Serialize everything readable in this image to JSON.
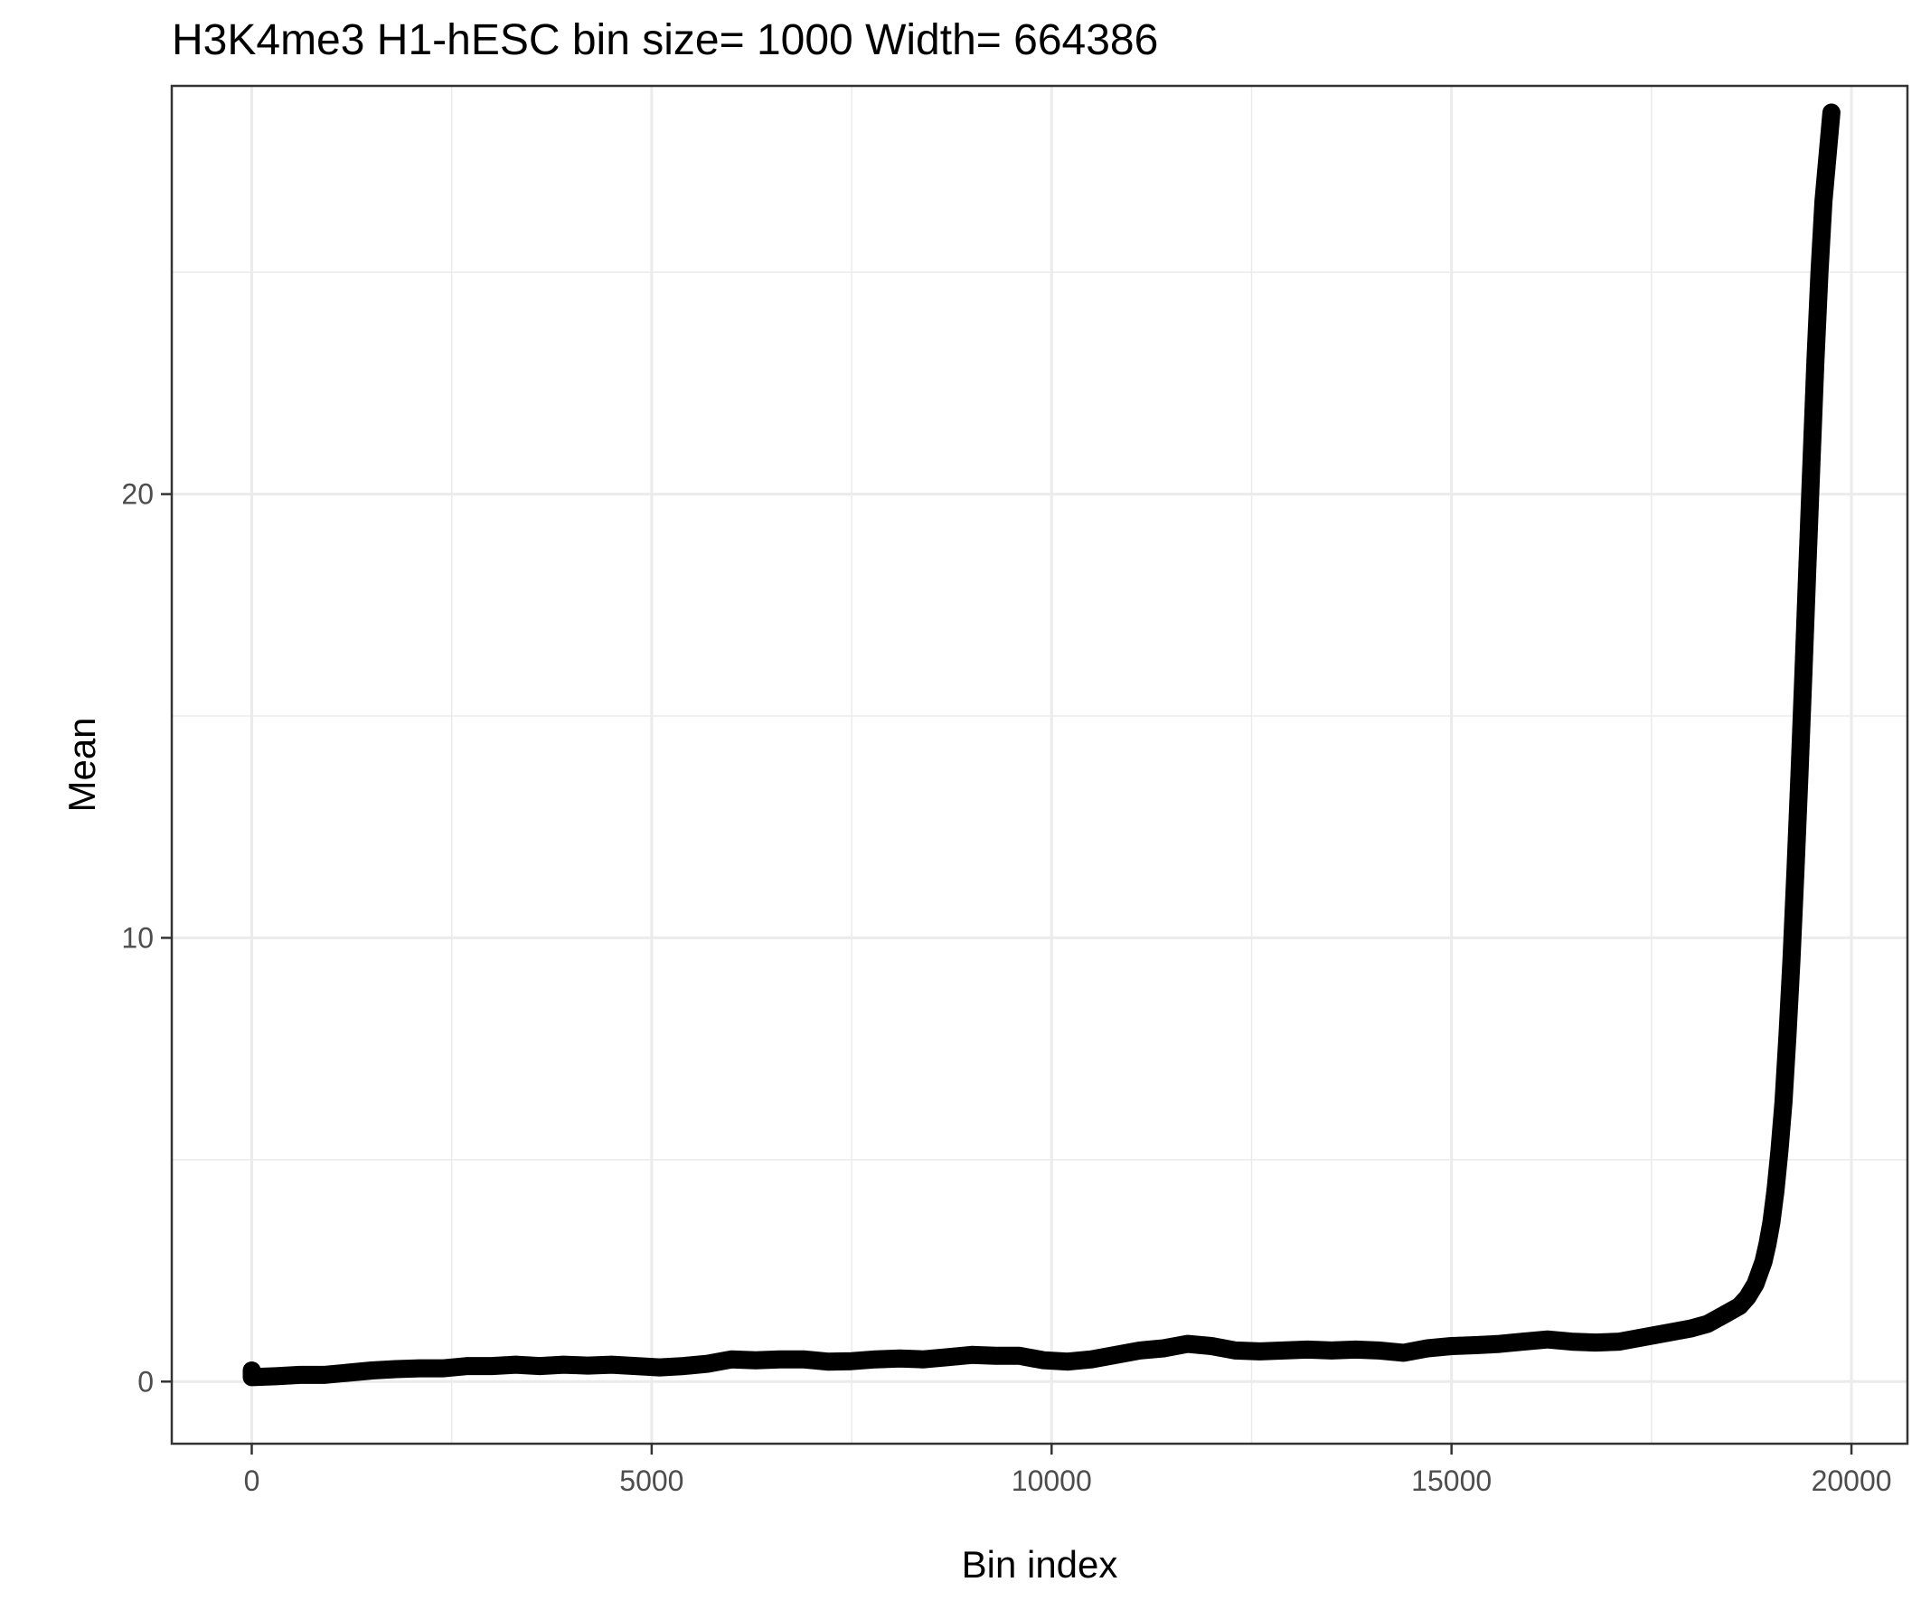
{
  "chart_data": {
    "type": "line",
    "title": "H3K4me3 H1-hESC  bin size=  1000  Width=  664386",
    "xlabel": "Bin index",
    "ylabel": "Mean",
    "xlim": [
      -1000,
      20700
    ],
    "ylim": [
      -1.4,
      29.2
    ],
    "x_ticks": [
      0,
      5000,
      10000,
      15000,
      20000
    ],
    "x_tick_labels": [
      "0",
      "5000",
      "10000",
      "15000",
      "20000"
    ],
    "x_minor_ticks": [
      2500,
      7500,
      12500,
      17500
    ],
    "y_ticks": [
      0,
      10,
      20
    ],
    "y_tick_labels": [
      "0",
      "10",
      "20"
    ],
    "y_minor_ticks": [
      5,
      15,
      25
    ],
    "grid": true,
    "legend": "none",
    "line_color": "#000000",
    "series": [
      {
        "x": [
          0,
          0,
          300,
          600,
          900,
          1200,
          1500,
          1800,
          2100,
          2400,
          2700,
          3000,
          3300,
          3600,
          3900,
          4200,
          4500,
          4800,
          5100,
          5400,
          5700,
          6000,
          6300,
          6600,
          6900,
          7200,
          7500,
          7800,
          8100,
          8400,
          8700,
          9000,
          9300,
          9600,
          9900,
          10200,
          10500,
          10800,
          11100,
          11400,
          11700,
          12000,
          12300,
          12600,
          12900,
          13200,
          13500,
          13800,
          14100,
          14400,
          14700,
          15000,
          15300,
          15600,
          15900,
          16200,
          16500,
          16800,
          17100,
          17400,
          17700,
          18000,
          18200,
          18400,
          18600,
          18700,
          18800,
          18900,
          18950,
          19000,
          19050,
          19100,
          19150,
          19200,
          19250,
          19300,
          19350,
          19400,
          19450,
          19500,
          19550,
          19600,
          19650,
          19700,
          19750
        ],
        "values": [
          0.25,
          0.1,
          0.12,
          0.15,
          0.15,
          0.2,
          0.25,
          0.28,
          0.3,
          0.3,
          0.35,
          0.35,
          0.38,
          0.35,
          0.38,
          0.36,
          0.38,
          0.35,
          0.32,
          0.35,
          0.4,
          0.5,
          0.48,
          0.5,
          0.5,
          0.45,
          0.46,
          0.5,
          0.52,
          0.5,
          0.55,
          0.6,
          0.58,
          0.58,
          0.48,
          0.45,
          0.5,
          0.6,
          0.7,
          0.75,
          0.85,
          0.8,
          0.7,
          0.68,
          0.7,
          0.72,
          0.7,
          0.72,
          0.7,
          0.65,
          0.75,
          0.8,
          0.82,
          0.85,
          0.9,
          0.95,
          0.9,
          0.88,
          0.9,
          1.0,
          1.1,
          1.2,
          1.3,
          1.5,
          1.7,
          1.9,
          2.2,
          2.7,
          3.1,
          3.6,
          4.3,
          5.2,
          6.3,
          7.8,
          9.5,
          11.5,
          13.7,
          16.0,
          18.4,
          20.7,
          23.0,
          25.0,
          26.6,
          27.6,
          28.6
        ]
      }
    ]
  }
}
